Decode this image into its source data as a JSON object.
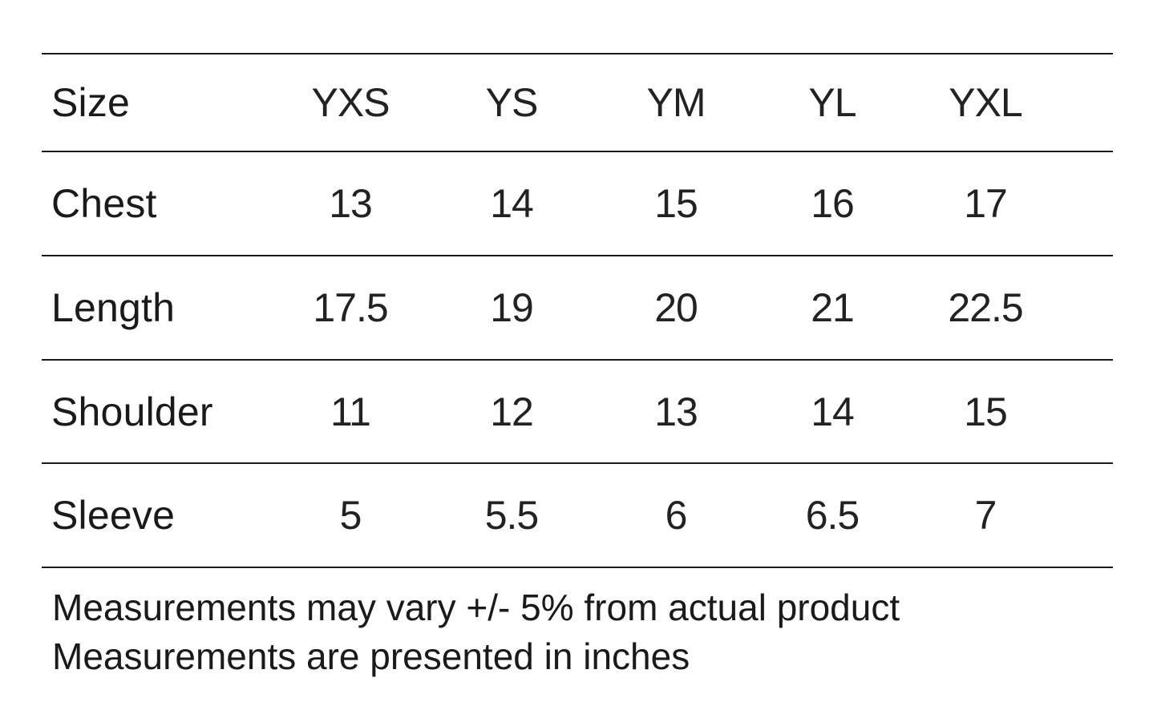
{
  "table": {
    "header": {
      "label": "Size",
      "columns": [
        "YXS",
        "YS",
        "YM",
        "YL",
        "YXL"
      ]
    },
    "rows": [
      {
        "label": "Chest",
        "values": [
          "13",
          "14",
          "15",
          "16",
          "17"
        ]
      },
      {
        "label": "Length",
        "values": [
          "17.5",
          "19",
          "20",
          "21",
          "22.5"
        ]
      },
      {
        "label": "Shoulder",
        "values": [
          "11",
          "12",
          "13",
          "14",
          "15"
        ]
      },
      {
        "label": "Sleeve",
        "values": [
          "5",
          "5.5",
          "6",
          "6.5",
          "7"
        ]
      }
    ]
  },
  "notes": [
    "Measurements may vary +/- 5% from actual product",
    "Measurements are presented in inches"
  ],
  "colors": {
    "text": "#1a1a1a",
    "rule": "#1a1a1a",
    "background": "#ffffff"
  }
}
